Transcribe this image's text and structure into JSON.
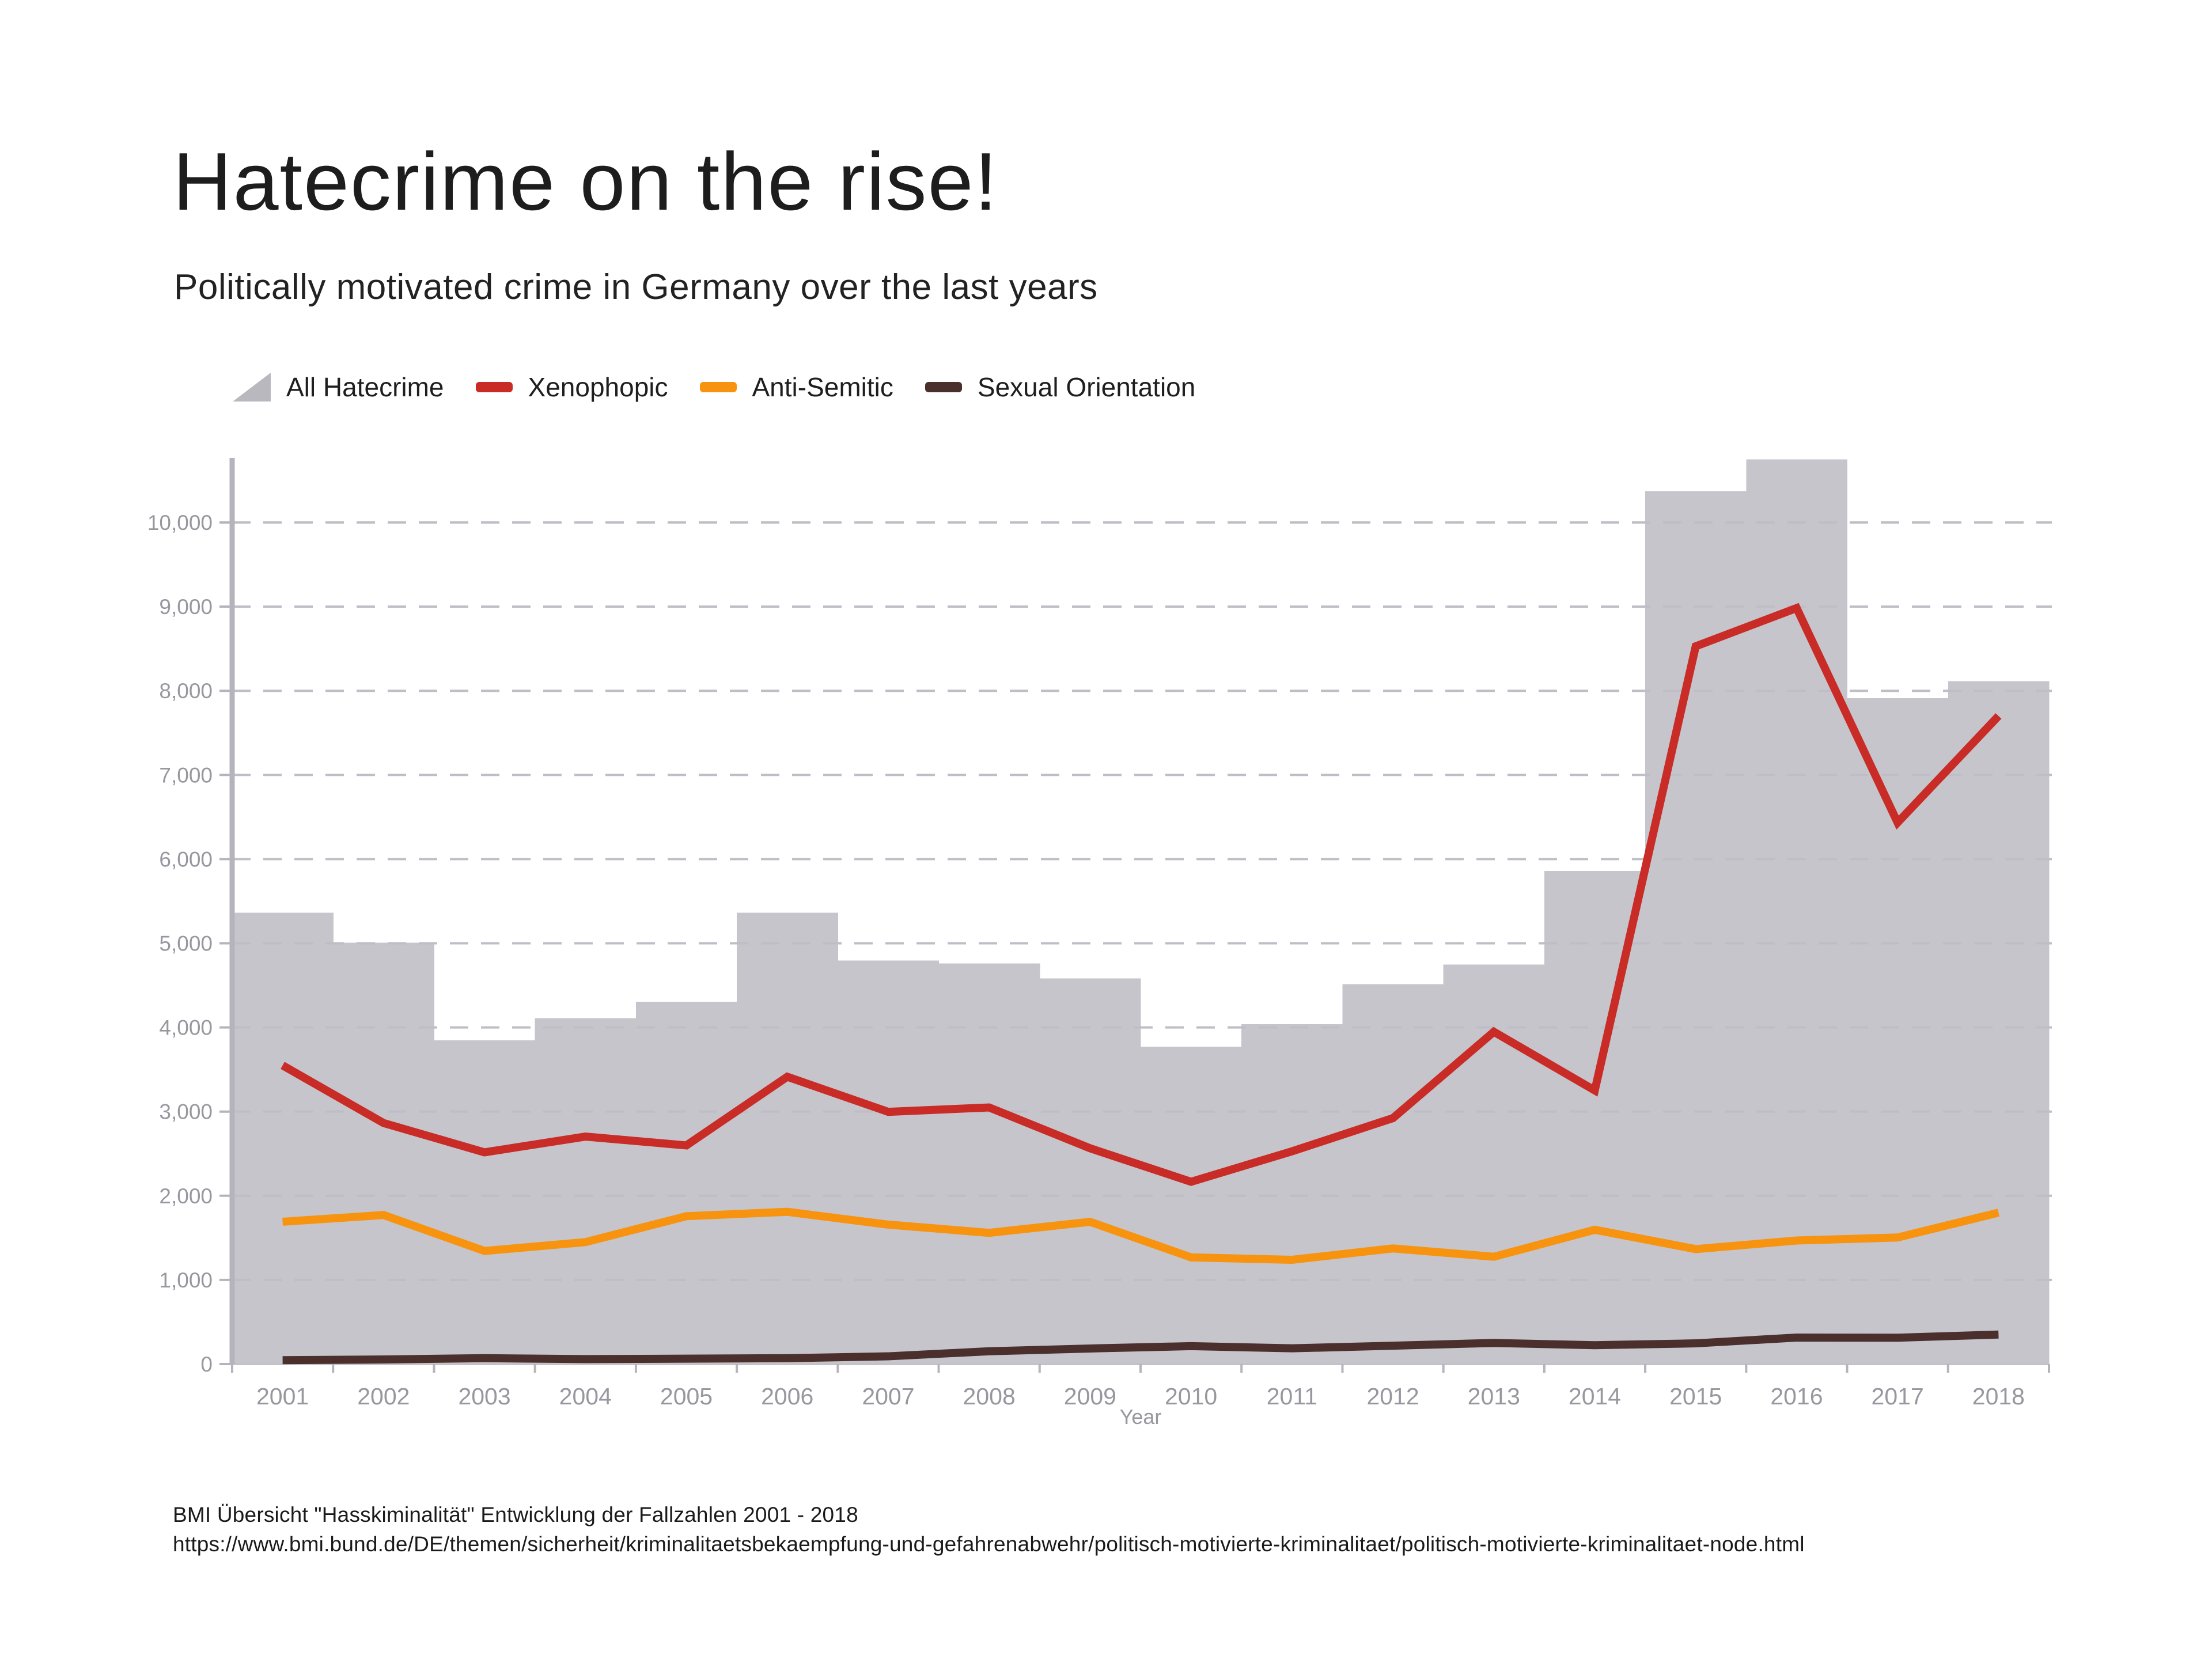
{
  "header": {
    "title": "Hatecrime on the rise!",
    "subtitle": "Politically motivated crime in Germany over the last years"
  },
  "legend": [
    {
      "label": "All Hatecrime",
      "swatch": "triangle-area",
      "color": "#b9b8bf"
    },
    {
      "label": "Xenophopic",
      "swatch": "line",
      "color": "#c92b26"
    },
    {
      "label": "Anti-Semitic",
      "swatch": "line",
      "color": "#f7930e"
    },
    {
      "label": "Sexual Orientation",
      "swatch": "line",
      "color": "#4a2f2d"
    }
  ],
  "chart_data": {
    "type": "combo-step-area-line",
    "categories": [
      2001,
      2002,
      2003,
      2004,
      2005,
      2006,
      2007,
      2008,
      2009,
      2010,
      2011,
      2012,
      2013,
      2014,
      2015,
      2016,
      2017,
      2018
    ],
    "series": [
      {
        "name": "All Hatecrime",
        "render": "step-area",
        "color": "#c6c5cc",
        "values": [
          5363,
          5006,
          3847,
          4111,
          4306,
          5362,
          4793,
          4759,
          4583,
          3770,
          4040,
          4514,
          4747,
          5858,
          10373,
          10751,
          7913,
          8113
        ]
      },
      {
        "name": "Xenophopic",
        "render": "line",
        "color": "#c92b26",
        "values": [
          3549,
          2864,
          2516,
          2703,
          2598,
          3414,
          2997,
          3049,
          2564,
          2166,
          2528,
          2922,
          3948,
          3252,
          8529,
          8983,
          6434,
          7701
        ]
      },
      {
        "name": "Anti-Semitic",
        "render": "line",
        "color": "#f7930e",
        "values": [
          1691,
          1771,
          1344,
          1449,
          1757,
          1809,
          1657,
          1559,
          1690,
          1268,
          1239,
          1374,
          1275,
          1596,
          1366,
          1468,
          1504,
          1799
        ]
      },
      {
        "name": "Sexual Orientation",
        "render": "line",
        "color": "#4a2f2d",
        "values": [
          46,
          55,
          70,
          59,
          64,
          70,
          92,
          152,
          185,
          213,
          187,
          218,
          251,
          224,
          246,
          315,
          313,
          351
        ]
      }
    ],
    "xlabel": "Year",
    "ylim": [
      0,
      10000
    ],
    "ytick_step": 1000,
    "ytick_labels": [
      "0",
      "1,000",
      "2,000",
      "3,000",
      "4,000",
      "5,000",
      "6,000",
      "7,000",
      "8,000",
      "9,000",
      "10,000"
    ],
    "grid": "dashed-horizontal",
    "legend_position": "top-left"
  },
  "source": {
    "line1": "BMI Übersicht \"Hasskiminalität\" Entwicklung der Fallzahlen 2001 - 2018",
    "line2": "https://www.bmi.bund.de/DE/themen/sicherheit/kriminalitaetsbekaempfung-und-gefahrenabwehr/politisch-motivierte-kriminalitaet/politisch-motivierte-kriminalitaet-node.html"
  }
}
